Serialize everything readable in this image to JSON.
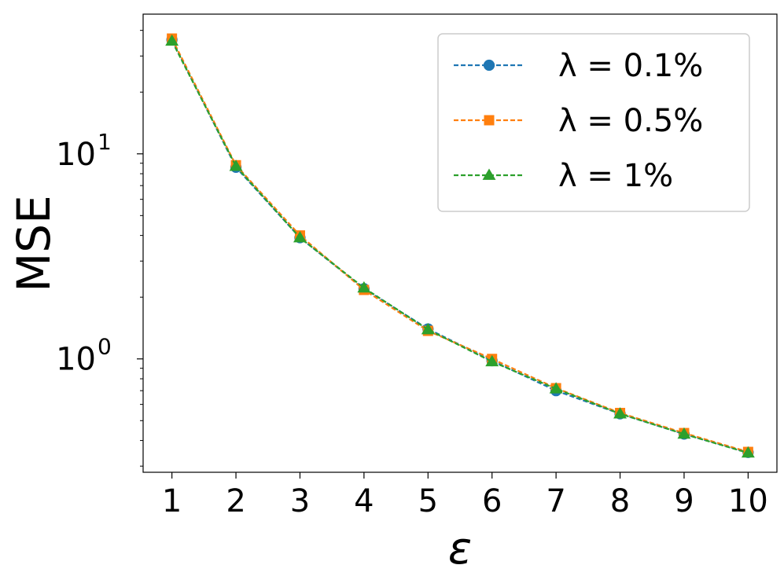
{
  "chart_data": {
    "type": "line",
    "xlabel": "ε",
    "ylabel": "MSE",
    "yscale": "log",
    "xlim": [
      0.55,
      10.45
    ],
    "ylim": [
      0.28,
      48
    ],
    "x_ticks": [
      "1",
      "2",
      "3",
      "4",
      "5",
      "6",
      "7",
      "8",
      "9",
      "10"
    ],
    "x": [
      1,
      2,
      3,
      4,
      5,
      6,
      7,
      8,
      9,
      10
    ],
    "y_major_ticks": [
      {
        "value": 1,
        "base": "10",
        "exp": "0"
      },
      {
        "value": 10,
        "base": "10",
        "exp": "1"
      }
    ],
    "legend_position": "top-right",
    "grid": false,
    "series": [
      {
        "name": "λ = 0.1%",
        "color": "#1f77b4",
        "marker": "circle",
        "linestyle": "dashed",
        "values": [
          36,
          8.6,
          3.9,
          2.2,
          1.4,
          0.98,
          0.7,
          0.54,
          0.43,
          0.35
        ]
      },
      {
        "name": "λ = 0.5%",
        "color": "#ff7f0e",
        "marker": "square",
        "linestyle": "dashed",
        "values": [
          36.5,
          8.8,
          4.0,
          2.17,
          1.37,
          1.0,
          0.72,
          0.545,
          0.435,
          0.352
        ]
      },
      {
        "name": "λ = 1%",
        "color": "#2ca02c",
        "marker": "triangle",
        "linestyle": "dashed",
        "values": [
          35.5,
          8.7,
          3.9,
          2.22,
          1.39,
          0.97,
          0.715,
          0.54,
          0.43,
          0.348
        ]
      }
    ]
  }
}
